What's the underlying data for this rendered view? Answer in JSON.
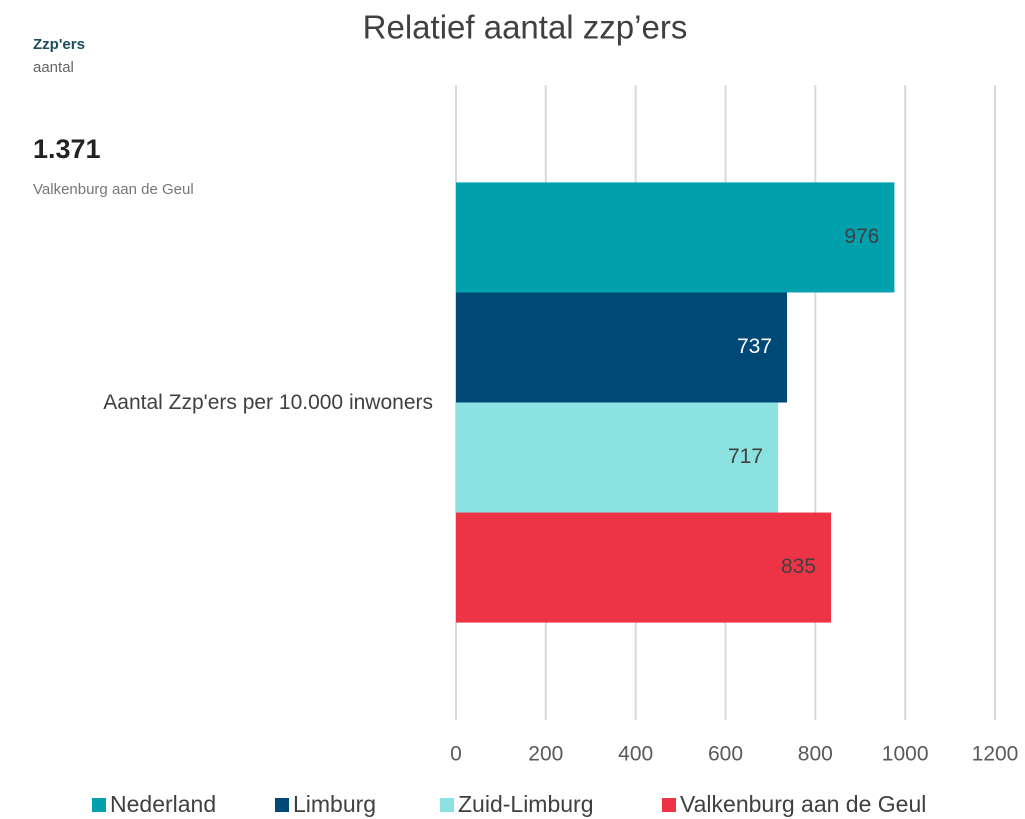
{
  "panel": {
    "heading": "Zzp'ers",
    "subheading": "aantal",
    "figure": "1.371",
    "figure_caption": "Valkenburg aan de Geul"
  },
  "chart_data": {
    "type": "bar",
    "orientation": "horizontal",
    "title": "Relatief aantal zzp’ers",
    "categories": [
      "Aantal Zzp'ers per 10.000 inwoners"
    ],
    "series": [
      {
        "name": "Nederland",
        "color": "#00a0ac",
        "values": [
          976
        ]
      },
      {
        "name": "Limburg",
        "color": "#004876",
        "values": [
          737
        ]
      },
      {
        "name": "Zuid-Limburg",
        "color": "#8ce1e1",
        "values": [
          717
        ]
      },
      {
        "name": "Valkenburg aan de Geul",
        "color": "#ec3446",
        "values": [
          835
        ]
      }
    ],
    "xlim": [
      0,
      1200
    ],
    "xticks": [
      0,
      200,
      400,
      600,
      800,
      1000,
      1200
    ],
    "grid": true,
    "legend": "bottom"
  }
}
